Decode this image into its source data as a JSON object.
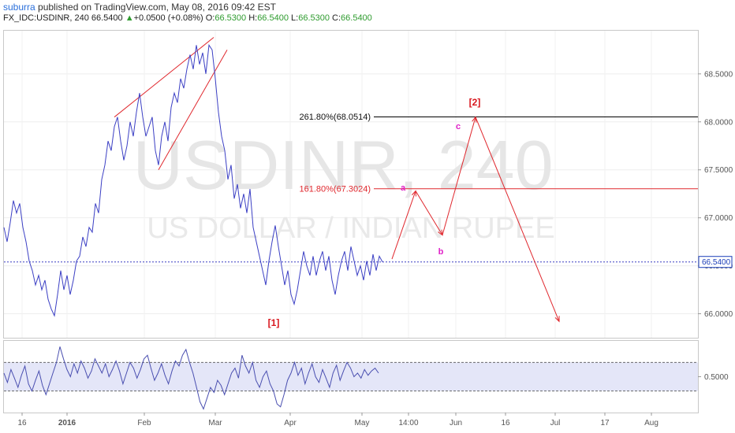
{
  "header": {
    "username": "suburra",
    "published": "published on TradingView.com, May 08, 2016 09:42 EST",
    "symbol": "FX_IDC:USDINR, 240",
    "last": "66.5400",
    "arrow": "▲",
    "change": "+0.0500 (+0.08%)",
    "o_label": "O:",
    "o_value": "66.5300",
    "h_label": "H:",
    "h_value": "66.5400",
    "l_label": "L:",
    "l_value": "66.5300",
    "c_label": "C:",
    "c_value": "66.5400"
  },
  "watermark": {
    "symbol": "USDINR, 240",
    "name": "US DOLLAR / INDIAN RUPEE"
  },
  "colors": {
    "price_line": "#3b3fc4",
    "annotation_red": "#e0282e",
    "wave_label_red": "#d8161d",
    "wave_label_magenta": "#e020c8",
    "fib_261": "#000000",
    "fib_161": "#e0282e",
    "oscillator_band": "#e4e6f8"
  },
  "chart_data": {
    "type": "line",
    "y_axis": {
      "range": [
        65.75,
        68.95
      ],
      "ticks": [
        "68.5000",
        "68.0000",
        "67.5000",
        "67.0000",
        "66.5000",
        "66.0000"
      ],
      "tick_values": [
        68.5,
        68.0,
        67.5,
        67.0,
        66.5,
        66.0
      ],
      "current_price_label": "66.5400",
      "current_price": 66.54
    },
    "x_axis": {
      "ticks": [
        "16",
        "2016",
        "Feb",
        "Mar",
        "Apr",
        "May",
        "14:00",
        "Jun",
        "16",
        "Jul",
        "17",
        "Aug"
      ]
    },
    "price_series": [
      {
        "t": 0,
        "v": 66.9
      },
      {
        "t": 4,
        "v": 66.75
      },
      {
        "t": 8,
        "v": 66.95
      },
      {
        "t": 12,
        "v": 67.18
      },
      {
        "t": 16,
        "v": 67.05
      },
      {
        "t": 20,
        "v": 67.15
      },
      {
        "t": 24,
        "v": 66.9
      },
      {
        "t": 28,
        "v": 66.75
      },
      {
        "t": 32,
        "v": 66.55
      },
      {
        "t": 36,
        "v": 66.45
      },
      {
        "t": 40,
        "v": 66.3
      },
      {
        "t": 44,
        "v": 66.4
      },
      {
        "t": 48,
        "v": 66.25
      },
      {
        "t": 52,
        "v": 66.35
      },
      {
        "t": 56,
        "v": 66.15
      },
      {
        "t": 60,
        "v": 66.05
      },
      {
        "t": 64,
        "v": 65.98
      },
      {
        "t": 68,
        "v": 66.2
      },
      {
        "t": 72,
        "v": 66.45
      },
      {
        "t": 76,
        "v": 66.25
      },
      {
        "t": 80,
        "v": 66.4
      },
      {
        "t": 84,
        "v": 66.2
      },
      {
        "t": 88,
        "v": 66.35
      },
      {
        "t": 92,
        "v": 66.55
      },
      {
        "t": 96,
        "v": 66.6
      },
      {
        "t": 100,
        "v": 66.8
      },
      {
        "t": 104,
        "v": 66.7
      },
      {
        "t": 108,
        "v": 66.9
      },
      {
        "t": 112,
        "v": 66.85
      },
      {
        "t": 116,
        "v": 67.15
      },
      {
        "t": 120,
        "v": 67.05
      },
      {
        "t": 124,
        "v": 67.4
      },
      {
        "t": 128,
        "v": 67.55
      },
      {
        "t": 132,
        "v": 67.8
      },
      {
        "t": 136,
        "v": 67.7
      },
      {
        "t": 140,
        "v": 67.95
      },
      {
        "t": 144,
        "v": 68.05
      },
      {
        "t": 148,
        "v": 67.8
      },
      {
        "t": 152,
        "v": 67.6
      },
      {
        "t": 156,
        "v": 67.75
      },
      {
        "t": 160,
        "v": 68.0
      },
      {
        "t": 164,
        "v": 67.85
      },
      {
        "t": 168,
        "v": 68.1
      },
      {
        "t": 172,
        "v": 68.3
      },
      {
        "t": 176,
        "v": 68.05
      },
      {
        "t": 180,
        "v": 67.85
      },
      {
        "t": 184,
        "v": 67.95
      },
      {
        "t": 188,
        "v": 68.05
      },
      {
        "t": 192,
        "v": 67.7
      },
      {
        "t": 196,
        "v": 67.55
      },
      {
        "t": 200,
        "v": 67.85
      },
      {
        "t": 204,
        "v": 68.0
      },
      {
        "t": 208,
        "v": 67.8
      },
      {
        "t": 212,
        "v": 68.15
      },
      {
        "t": 216,
        "v": 68.3
      },
      {
        "t": 220,
        "v": 68.2
      },
      {
        "t": 224,
        "v": 68.45
      },
      {
        "t": 228,
        "v": 68.35
      },
      {
        "t": 232,
        "v": 68.55
      },
      {
        "t": 236,
        "v": 68.7
      },
      {
        "t": 240,
        "v": 68.55
      },
      {
        "t": 244,
        "v": 68.8
      },
      {
        "t": 248,
        "v": 68.6
      },
      {
        "t": 252,
        "v": 68.72
      },
      {
        "t": 256,
        "v": 68.5
      },
      {
        "t": 260,
        "v": 68.8
      },
      {
        "t": 264,
        "v": 68.75
      },
      {
        "t": 268,
        "v": 68.45
      },
      {
        "t": 272,
        "v": 68.1
      },
      {
        "t": 276,
        "v": 67.85
      },
      {
        "t": 280,
        "v": 67.7
      },
      {
        "t": 284,
        "v": 67.4
      },
      {
        "t": 288,
        "v": 67.55
      },
      {
        "t": 292,
        "v": 67.2
      },
      {
        "t": 296,
        "v": 67.35
      },
      {
        "t": 300,
        "v": 67.1
      },
      {
        "t": 304,
        "v": 67.25
      },
      {
        "t": 308,
        "v": 67.05
      },
      {
        "t": 312,
        "v": 67.3
      },
      {
        "t": 316,
        "v": 66.9
      },
      {
        "t": 320,
        "v": 66.75
      },
      {
        "t": 324,
        "v": 66.6
      },
      {
        "t": 328,
        "v": 66.45
      },
      {
        "t": 332,
        "v": 66.3
      },
      {
        "t": 336,
        "v": 66.55
      },
      {
        "t": 340,
        "v": 66.75
      },
      {
        "t": 344,
        "v": 66.92
      },
      {
        "t": 348,
        "v": 66.7
      },
      {
        "t": 352,
        "v": 66.5
      },
      {
        "t": 356,
        "v": 66.3
      },
      {
        "t": 360,
        "v": 66.45
      },
      {
        "t": 364,
        "v": 66.2
      },
      {
        "t": 368,
        "v": 66.1
      },
      {
        "t": 372,
        "v": 66.25
      },
      {
        "t": 376,
        "v": 66.45
      },
      {
        "t": 380,
        "v": 66.65
      },
      {
        "t": 384,
        "v": 66.5
      },
      {
        "t": 388,
        "v": 66.4
      },
      {
        "t": 392,
        "v": 66.6
      },
      {
        "t": 396,
        "v": 66.4
      },
      {
        "t": 400,
        "v": 66.55
      },
      {
        "t": 404,
        "v": 66.65
      },
      {
        "t": 408,
        "v": 66.45
      },
      {
        "t": 412,
        "v": 66.6
      },
      {
        "t": 416,
        "v": 66.35
      },
      {
        "t": 420,
        "v": 66.2
      },
      {
        "t": 424,
        "v": 66.4
      },
      {
        "t": 428,
        "v": 66.55
      },
      {
        "t": 432,
        "v": 66.65
      },
      {
        "t": 436,
        "v": 66.45
      },
      {
        "t": 440,
        "v": 66.7
      },
      {
        "t": 444,
        "v": 66.55
      },
      {
        "t": 448,
        "v": 66.4
      },
      {
        "t": 452,
        "v": 66.5
      },
      {
        "t": 456,
        "v": 66.35
      },
      {
        "t": 460,
        "v": 66.55
      },
      {
        "t": 464,
        "v": 66.4
      },
      {
        "t": 468,
        "v": 66.62
      },
      {
        "t": 472,
        "v": 66.45
      },
      {
        "t": 476,
        "v": 66.6
      },
      {
        "t": 480,
        "v": 66.54
      }
    ],
    "fib_levels": [
      {
        "label": "261.80%(68.0514)",
        "value": 68.0514,
        "color": "#000000"
      },
      {
        "label": "161.80%(67.3024)",
        "value": 67.3024,
        "color": "#e0282e"
      }
    ],
    "wave_labels": [
      {
        "text": "[1]",
        "style": "red"
      },
      {
        "text": "[2]",
        "style": "red"
      },
      {
        "text": "a",
        "style": "magenta"
      },
      {
        "text": "b",
        "style": "magenta"
      },
      {
        "text": "c",
        "style": "magenta"
      }
    ],
    "projection": [
      {
        "t": 492,
        "v": 66.57
      },
      {
        "t": 522,
        "v": 67.28
      },
      {
        "t": 556,
        "v": 66.82
      },
      {
        "t": 598,
        "v": 68.05
      },
      {
        "t": 704,
        "v": 65.92
      }
    ],
    "channel": [
      {
        "from": {
          "t": 140,
          "v": 68.05
        },
        "to": {
          "t": 266,
          "v": 68.88
        }
      },
      {
        "from": {
          "t": 196,
          "v": 67.5
        },
        "to": {
          "t": 283,
          "v": 68.75
        }
      }
    ],
    "oscillator": {
      "tick_label": "0.5000",
      "tick_value": 0.5,
      "band": [
        0.3,
        0.7
      ],
      "range": [
        0.0,
        1.0
      ],
      "values": [
        0.55,
        0.42,
        0.6,
        0.48,
        0.35,
        0.52,
        0.65,
        0.4,
        0.3,
        0.45,
        0.58,
        0.38,
        0.25,
        0.4,
        0.55,
        0.7,
        0.92,
        0.75,
        0.6,
        0.5,
        0.68,
        0.55,
        0.72,
        0.62,
        0.48,
        0.58,
        0.75,
        0.65,
        0.55,
        0.68,
        0.5,
        0.6,
        0.72,
        0.58,
        0.4,
        0.55,
        0.7,
        0.62,
        0.48,
        0.6,
        0.75,
        0.8,
        0.62,
        0.45,
        0.55,
        0.68,
        0.52,
        0.4,
        0.58,
        0.72,
        0.65,
        0.8,
        0.88,
        0.7,
        0.55,
        0.35,
        0.15,
        0.05,
        0.2,
        0.35,
        0.28,
        0.45,
        0.38,
        0.25,
        0.4,
        0.55,
        0.62,
        0.48,
        0.8,
        0.65,
        0.55,
        0.7,
        0.45,
        0.35,
        0.5,
        0.58,
        0.4,
        0.3,
        0.12,
        0.08,
        0.25,
        0.45,
        0.55,
        0.7,
        0.52,
        0.62,
        0.4,
        0.55,
        0.68,
        0.5,
        0.42,
        0.6,
        0.48,
        0.35,
        0.55,
        0.66,
        0.45,
        0.58,
        0.7,
        0.62,
        0.5,
        0.55,
        0.48,
        0.6,
        0.52,
        0.58,
        0.62,
        0.55
      ]
    }
  }
}
